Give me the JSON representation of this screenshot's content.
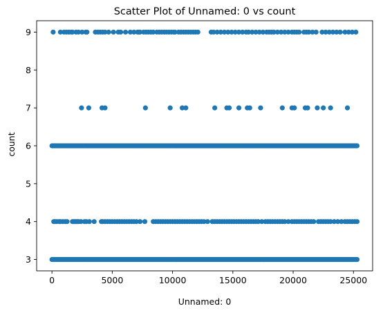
{
  "chart_data": {
    "type": "scatter",
    "title": "Scatter Plot of Unnamed: 0 vs count",
    "xlabel": "Unnamed: 0",
    "ylabel": "count",
    "xlim": [
      -1270,
      26590
    ],
    "ylim": [
      2.7,
      9.3
    ],
    "xticks": [
      0,
      5000,
      10000,
      15000,
      20000,
      25000
    ],
    "xtick_labels": [
      "0",
      "5000",
      "10000",
      "15000",
      "20000",
      "25000"
    ],
    "yticks": [
      3,
      4,
      5,
      6,
      7,
      8,
      9
    ],
    "ytick_labels": [
      "3",
      "4",
      "5",
      "6",
      "7",
      "8",
      "9"
    ],
    "grid": false,
    "legend": "none",
    "marker_color": "#1f77b4",
    "series": [
      {
        "values_at": [
          {
            "y": 3,
            "x_range": [
              0,
              25300
            ],
            "density": "continuous"
          },
          {
            "y": 4,
            "x": [
              150,
              250,
              400,
              600,
              700,
              900,
              1100,
              1250,
              1700,
              1800,
              1900,
              2000,
              2100,
              2200,
              2400,
              2700,
              2850,
              3100,
              3500,
              4100,
              4200,
              4400,
              4600,
              4800,
              5000,
              5200,
              5400,
              5600,
              5800,
              6000,
              6200,
              6400,
              6600,
              6800,
              7000,
              7300,
              7700,
              8400,
              8600,
              8800,
              9000,
              9200,
              9400,
              9600,
              9800,
              10000,
              10200,
              10400,
              10600,
              10800,
              11000,
              11200,
              11400,
              11600,
              11800,
              12000,
              12200,
              12400,
              12600,
              12900,
              13300,
              13500,
              13700,
              13900,
              14100,
              14300,
              14500,
              14700,
              14900,
              15100,
              15300,
              15500,
              15700,
              15900,
              16100,
              16300,
              16500,
              16700,
              16900,
              17100,
              17400,
              17700,
              17900,
              18100,
              18300,
              18500,
              18700,
              18900,
              19100,
              19300,
              19600,
              19900,
              20100,
              20300,
              20500,
              20700,
              20900,
              21100,
              21300,
              21500,
              21700,
              22100,
              22300,
              22500,
              22700,
              22900,
              23100,
              23400,
              23700,
              24000,
              24300,
              24500,
              24700,
              24900,
              25100,
              25300
            ]
          },
          {
            "y": 6,
            "x_range": [
              0,
              25300
            ],
            "density": "continuous"
          },
          {
            "y": 7,
            "x": [
              2450,
              3050,
              4150,
              4400,
              7750,
              9800,
              10800,
              11100,
              13500,
              14500,
              14700,
              15500,
              16200,
              16400,
              17300,
              19100,
              19900,
              20100,
              21000,
              21200,
              22000,
              22500,
              23100,
              24500
            ]
          },
          {
            "y": 9,
            "x": [
              100,
              700,
              1000,
              1200,
              1400,
              1600,
              1700,
              2000,
              2200,
              2500,
              2800,
              2900,
              3600,
              3800,
              4000,
              4200,
              4400,
              4700,
              5100,
              5500,
              5700,
              6100,
              6500,
              6800,
              7100,
              7200,
              7300,
              7600,
              7800,
              8000,
              8200,
              8400,
              8700,
              8900,
              9100,
              9300,
              9500,
              9700,
              9900,
              10100,
              10200,
              10500,
              10700,
              10900,
              11100,
              11300,
              11500,
              11700,
              11900,
              12100,
              13200,
              13400,
              13700,
              14000,
              14300,
              14600,
              14900,
              15200,
              15500,
              15800,
              16100,
              16300,
              16600,
              16900,
              17200,
              17500,
              17800,
              18000,
              18200,
              18400,
              18700,
              19000,
              19300,
              19600,
              19900,
              20100,
              20300,
              20500,
              20900,
              21100,
              21300,
              21600,
              21900,
              22400,
              22700,
              23000,
              23300,
              23600,
              23900,
              24300,
              24600,
              24900,
              25200
            ]
          }
        ]
      }
    ]
  }
}
